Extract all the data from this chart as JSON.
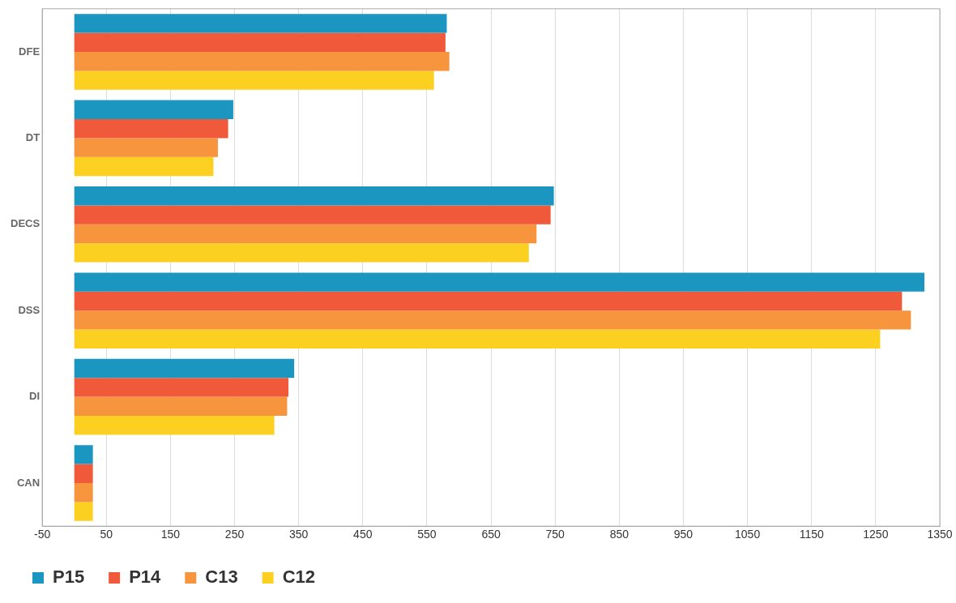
{
  "chart_data": {
    "type": "bar",
    "orientation": "horizontal",
    "categories": [
      "DFE",
      "DT",
      "DECS",
      "DSS",
      "DI",
      "CAN"
    ],
    "series": [
      {
        "name": "P15",
        "color": "#1a96c0",
        "values": [
          581,
          248,
          748,
          1326,
          343,
          29
        ]
      },
      {
        "name": "P14",
        "color": "#f05a3a",
        "values": [
          579,
          240,
          743,
          1291,
          334,
          29
        ]
      },
      {
        "name": "C13",
        "color": "#f7943e",
        "values": [
          585,
          224,
          721,
          1305,
          332,
          29
        ]
      },
      {
        "name": "C12",
        "color": "#fbd020",
        "values": [
          561,
          217,
          709,
          1257,
          312,
          29
        ]
      }
    ],
    "xlim": [
      -50,
      1350
    ],
    "xticks": [
      -50,
      50,
      150,
      250,
      350,
      450,
      550,
      650,
      750,
      850,
      950,
      1050,
      1150,
      1250,
      1350
    ],
    "grid": "x",
    "legend": "bottom left"
  }
}
